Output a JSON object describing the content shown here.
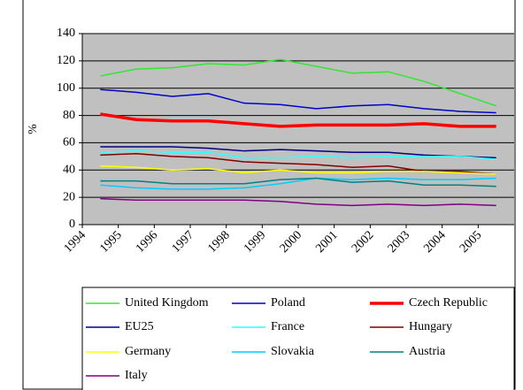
{
  "chart_data": {
    "type": "line",
    "y_label": "%",
    "categories": [
      "1994",
      "1995",
      "1996",
      "1997",
      "1998",
      "1999",
      "2000",
      "2001",
      "2002",
      "2003",
      "2004",
      "2005"
    ],
    "ylim": [
      0,
      140
    ],
    "yticks": [
      0,
      20,
      40,
      60,
      80,
      100,
      120,
      140
    ],
    "grid": true,
    "series": [
      {
        "name": "United Kingdom",
        "color": "#33e633",
        "line_width": 1.5,
        "values": [
          109,
          114,
          115,
          118,
          117,
          121,
          116,
          111,
          112,
          105,
          96,
          87
        ]
      },
      {
        "name": "Poland",
        "color": "#0000cc",
        "line_width": 1.5,
        "values": [
          99,
          97,
          94,
          96,
          89,
          88,
          85,
          87,
          88,
          85,
          83,
          82
        ]
      },
      {
        "name": "Czech Republic",
        "color": "#ff0000",
        "line_width": 3.5,
        "values": [
          81,
          77,
          76,
          76,
          74,
          72,
          73,
          73,
          73,
          74,
          72,
          72
        ]
      },
      {
        "name": "EU25",
        "color": "#000080",
        "line_width": 1.5,
        "values": [
          57,
          57,
          57,
          56,
          54,
          55,
          54,
          53,
          53,
          51,
          50,
          49
        ]
      },
      {
        "name": "France",
        "color": "#33ffff",
        "line_width": 1.5,
        "values": [
          53,
          54,
          53,
          53,
          49,
          49,
          50,
          49,
          50,
          50,
          50,
          48
        ]
      },
      {
        "name": "Hungary",
        "color": "#800000",
        "line_width": 1.5,
        "values": [
          51,
          52,
          50,
          49,
          46,
          45,
          44,
          42,
          43,
          39,
          39,
          37
        ]
      },
      {
        "name": "Germany",
        "color": "#ffff00",
        "line_width": 1.5,
        "values": [
          43,
          42,
          40,
          41,
          38,
          40,
          38,
          38,
          39,
          39,
          38,
          37
        ]
      },
      {
        "name": "Slovakia",
        "color": "#00ccff",
        "line_width": 1.5,
        "values": [
          29,
          27,
          26,
          26,
          27,
          30,
          34,
          33,
          34,
          33,
          33,
          34
        ]
      },
      {
        "name": "Austria",
        "color": "#008080",
        "line_width": 1.5,
        "values": [
          32,
          32,
          30,
          30,
          30,
          33,
          34,
          31,
          32,
          29,
          29,
          28
        ]
      },
      {
        "name": "Italy",
        "color": "#800080",
        "line_width": 1.5,
        "values": [
          19,
          18,
          18,
          18,
          18,
          17,
          15,
          14,
          15,
          14,
          15,
          14
        ]
      }
    ]
  }
}
